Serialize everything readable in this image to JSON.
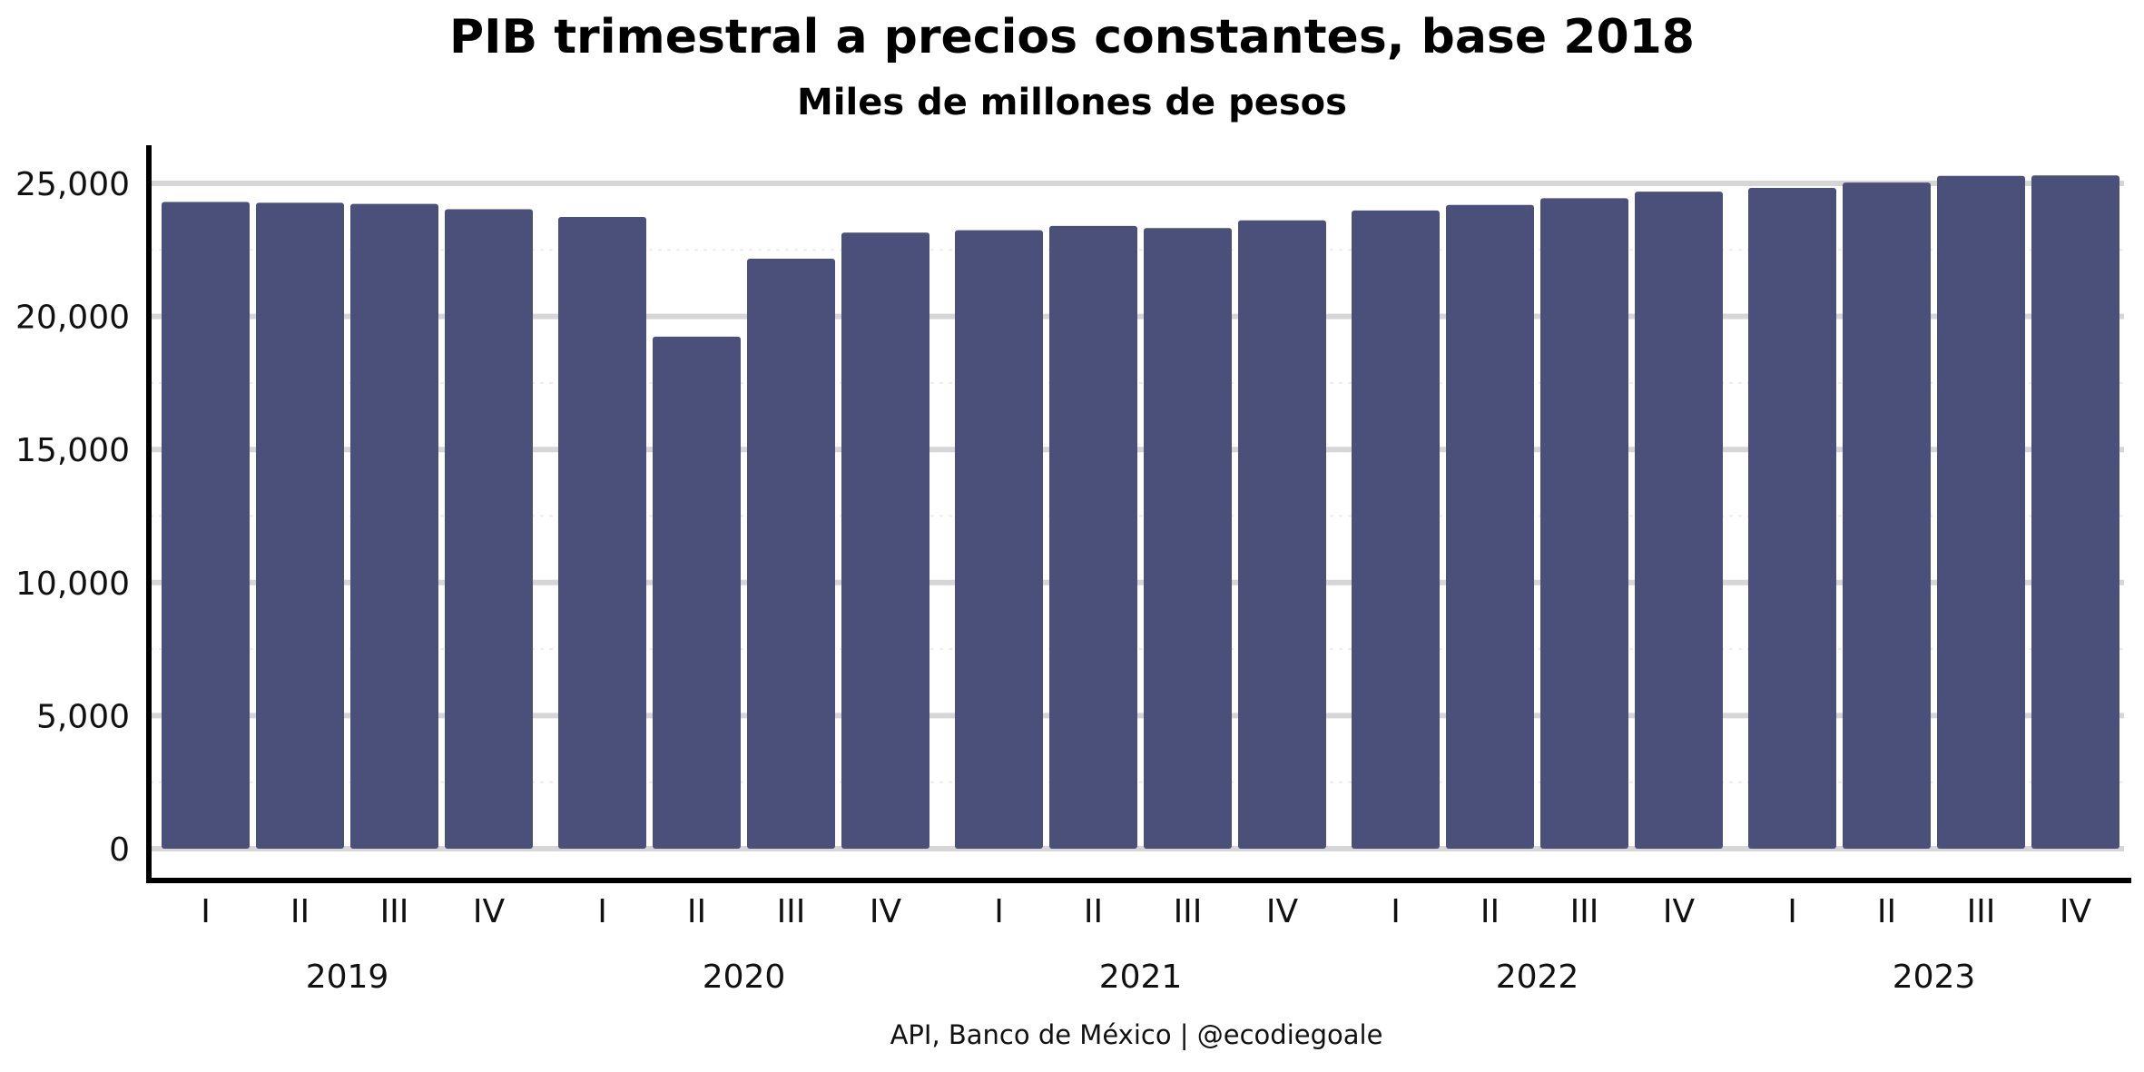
{
  "chart_data": {
    "type": "bar",
    "title": "PIB trimestral a precios constantes, base 2018",
    "subtitle": "Miles de millones de pesos",
    "caption": "API, Banco de México | @ecodiegoale",
    "ylim": [
      0,
      26000
    ],
    "yticks": [
      0,
      5000,
      10000,
      15000,
      20000,
      25000
    ],
    "ytick_labels": [
      "0",
      "5,000",
      "10,000",
      "15,000",
      "20,000",
      "25,000"
    ],
    "grid": true,
    "bar_color": "#4a5079",
    "groups": [
      {
        "year": "2019",
        "quarters": [
          "I",
          "II",
          "III",
          "IV"
        ],
        "values": [
          24300,
          24270,
          24230,
          24030
        ]
      },
      {
        "year": "2020",
        "quarters": [
          "I",
          "II",
          "III",
          "IV"
        ],
        "values": [
          23740,
          19240,
          22170,
          23150
        ]
      },
      {
        "year": "2021",
        "quarters": [
          "I",
          "II",
          "III",
          "IV"
        ],
        "values": [
          23240,
          23400,
          23320,
          23610
        ]
      },
      {
        "year": "2022",
        "quarters": [
          "I",
          "II",
          "III",
          "IV"
        ],
        "values": [
          23980,
          24190,
          24440,
          24690
        ]
      },
      {
        "year": "2023",
        "quarters": [
          "I",
          "II",
          "III",
          "IV"
        ],
        "values": [
          24830,
          25030,
          25280,
          25300
        ]
      }
    ]
  }
}
